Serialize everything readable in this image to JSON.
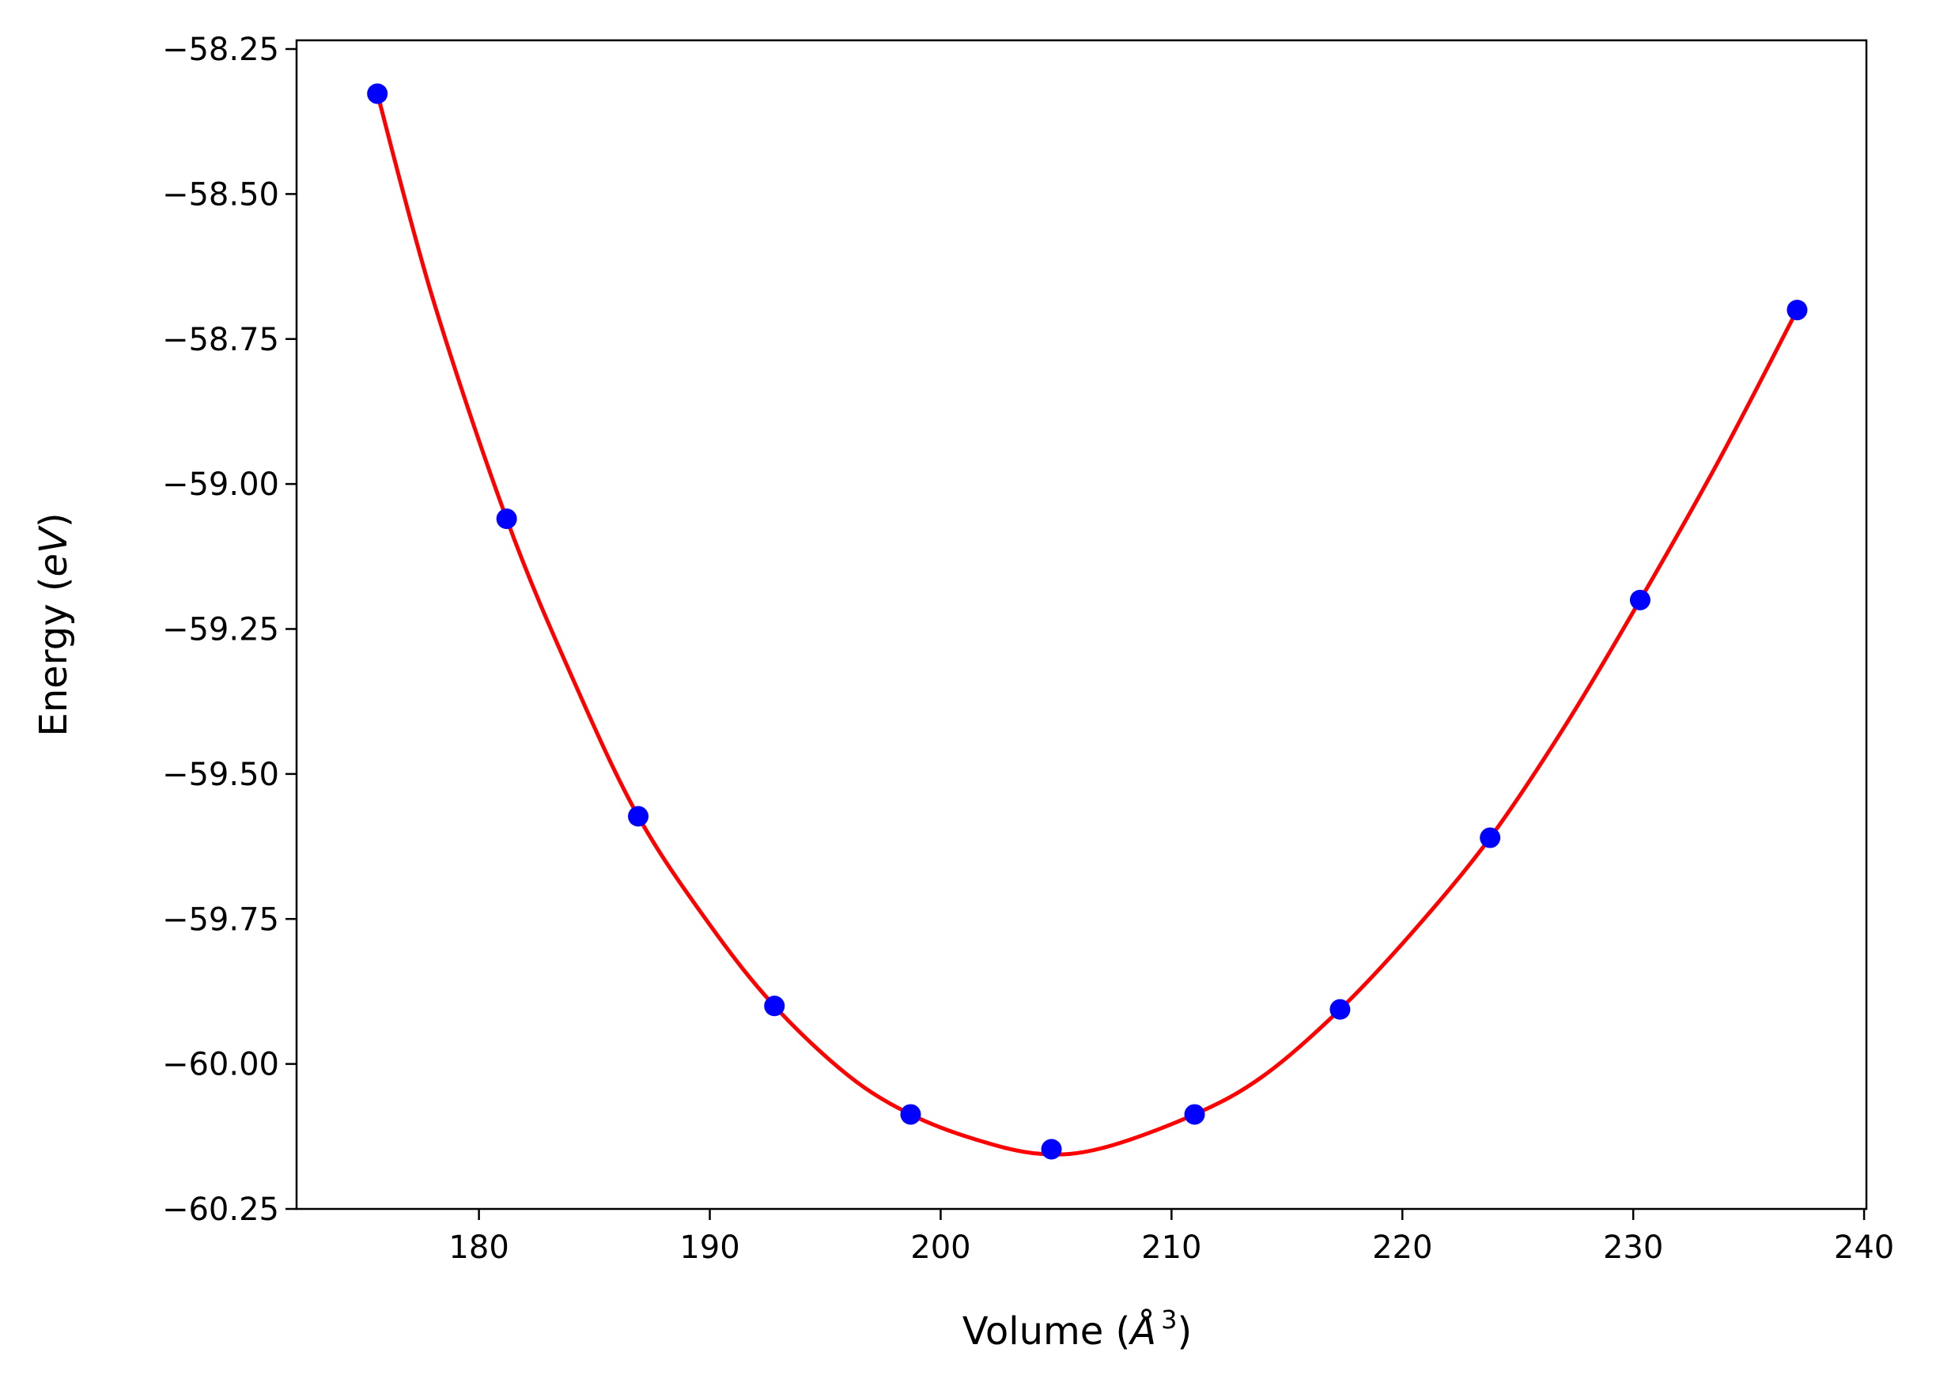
{
  "chart_data": {
    "type": "scatter",
    "title": "",
    "xlabel": "Volume (Å³)",
    "xlabel_parts": {
      "lead": "Volume (",
      "symbol": "Å",
      "exponent": "3",
      "tail": ")"
    },
    "ylabel": "Energy (eV)",
    "ylabel_parts": {
      "lead": "Energy (",
      "unit": "eV",
      "tail": ")"
    },
    "xlim": [
      172.1,
      240.1
    ],
    "ylim": [
      -60.25,
      -58.235
    ],
    "x_ticks": [
      180,
      190,
      200,
      210,
      220,
      230,
      240
    ],
    "x_tick_labels": [
      "180",
      "190",
      "200",
      "210",
      "220",
      "230",
      "240"
    ],
    "y_ticks": [
      -58.25,
      -58.5,
      -58.75,
      -59.0,
      -59.25,
      -59.5,
      -59.75,
      -60.0,
      -60.25
    ],
    "y_tick_labels": [
      "−58.25",
      "−58.50",
      "−58.75",
      "−59.00",
      "−59.25",
      "−59.50",
      "−59.75",
      "−60.00",
      "−60.25"
    ],
    "grid": false,
    "series": [
      {
        "kind": "points",
        "color": "#0000ff",
        "x": [
          175.6,
          181.2,
          186.9,
          192.8,
          198.7,
          204.8,
          211.0,
          217.3,
          223.8,
          230.3,
          237.1
        ],
        "y": [
          -58.327,
          -59.06,
          -59.573,
          -59.9,
          -60.087,
          -60.147,
          -60.087,
          -59.906,
          -59.61,
          -59.2,
          -58.7
        ]
      },
      {
        "kind": "fit",
        "color": "#ff0000",
        "x": [
          175.6,
          178.0,
          181.2,
          184.0,
          186.9,
          190.0,
          192.8,
          196.0,
          198.7,
          201.5,
          204.3,
          207.0,
          211.0,
          214.0,
          217.3,
          220.5,
          223.8,
          227.0,
          230.3,
          233.7,
          237.1
        ],
        "y": [
          -58.327,
          -58.68,
          -59.06,
          -59.33,
          -59.573,
          -59.76,
          -59.9,
          -60.02,
          -60.087,
          -60.13,
          -60.155,
          -60.145,
          -60.087,
          -60.02,
          -59.906,
          -59.77,
          -59.61,
          -59.42,
          -59.2,
          -58.96,
          -58.7
        ]
      }
    ]
  }
}
